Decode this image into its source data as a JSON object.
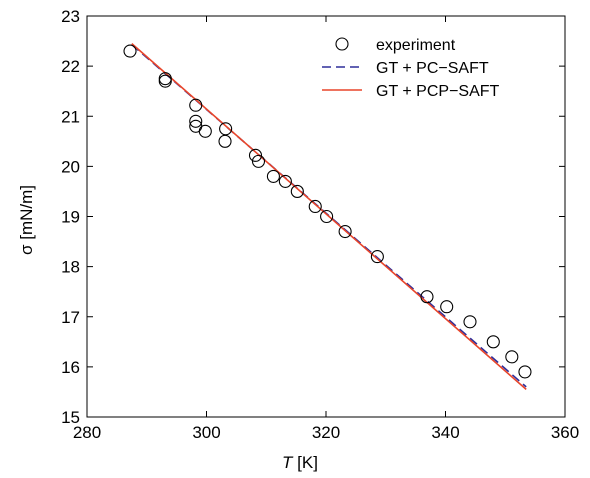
{
  "chart_data": {
    "type": "scatter",
    "title": "",
    "xlabel": {
      "symbol": "T",
      "unit": " [K]"
    },
    "ylabel": "σ [mN/m]",
    "xlim": [
      280,
      360
    ],
    "ylim": [
      15,
      23
    ],
    "xticks": [
      280,
      300,
      320,
      340,
      360
    ],
    "yticks": [
      15,
      16,
      17,
      18,
      19,
      20,
      21,
      22,
      23
    ],
    "grid": false,
    "legend_position": "top-right",
    "series": [
      {
        "name": "experiment",
        "kind": "markers",
        "marker": "open-circle",
        "color": "#000000",
        "points": [
          [
            287.2,
            22.3
          ],
          [
            293.1,
            21.75
          ],
          [
            293.1,
            21.7
          ],
          [
            298.2,
            21.22
          ],
          [
            298.2,
            20.9
          ],
          [
            298.2,
            20.8
          ],
          [
            299.8,
            20.7
          ],
          [
            303.2,
            20.75
          ],
          [
            303.1,
            20.5
          ],
          [
            308.2,
            20.22
          ],
          [
            308.7,
            20.1
          ],
          [
            311.2,
            19.8
          ],
          [
            313.2,
            19.7
          ],
          [
            315.2,
            19.5
          ],
          [
            318.2,
            19.2
          ],
          [
            320.1,
            19.0
          ],
          [
            323.2,
            18.7
          ],
          [
            328.6,
            18.2
          ],
          [
            336.9,
            17.4
          ],
          [
            340.2,
            17.2
          ],
          [
            344.1,
            16.9
          ],
          [
            348.0,
            16.5
          ],
          [
            351.1,
            16.2
          ],
          [
            353.3,
            15.9
          ]
        ]
      },
      {
        "name": "GT + PC−SAFT",
        "kind": "line",
        "dash": "dashed",
        "color": "#2e2e9a",
        "points": [
          [
            287.5,
            22.43
          ],
          [
            353.5,
            15.6
          ]
        ]
      },
      {
        "name": "GT + PCP−SAFT",
        "kind": "line",
        "dash": "solid",
        "color": "#e8452a",
        "points": [
          [
            287.5,
            22.45
          ],
          [
            353.5,
            15.55
          ]
        ]
      }
    ]
  }
}
